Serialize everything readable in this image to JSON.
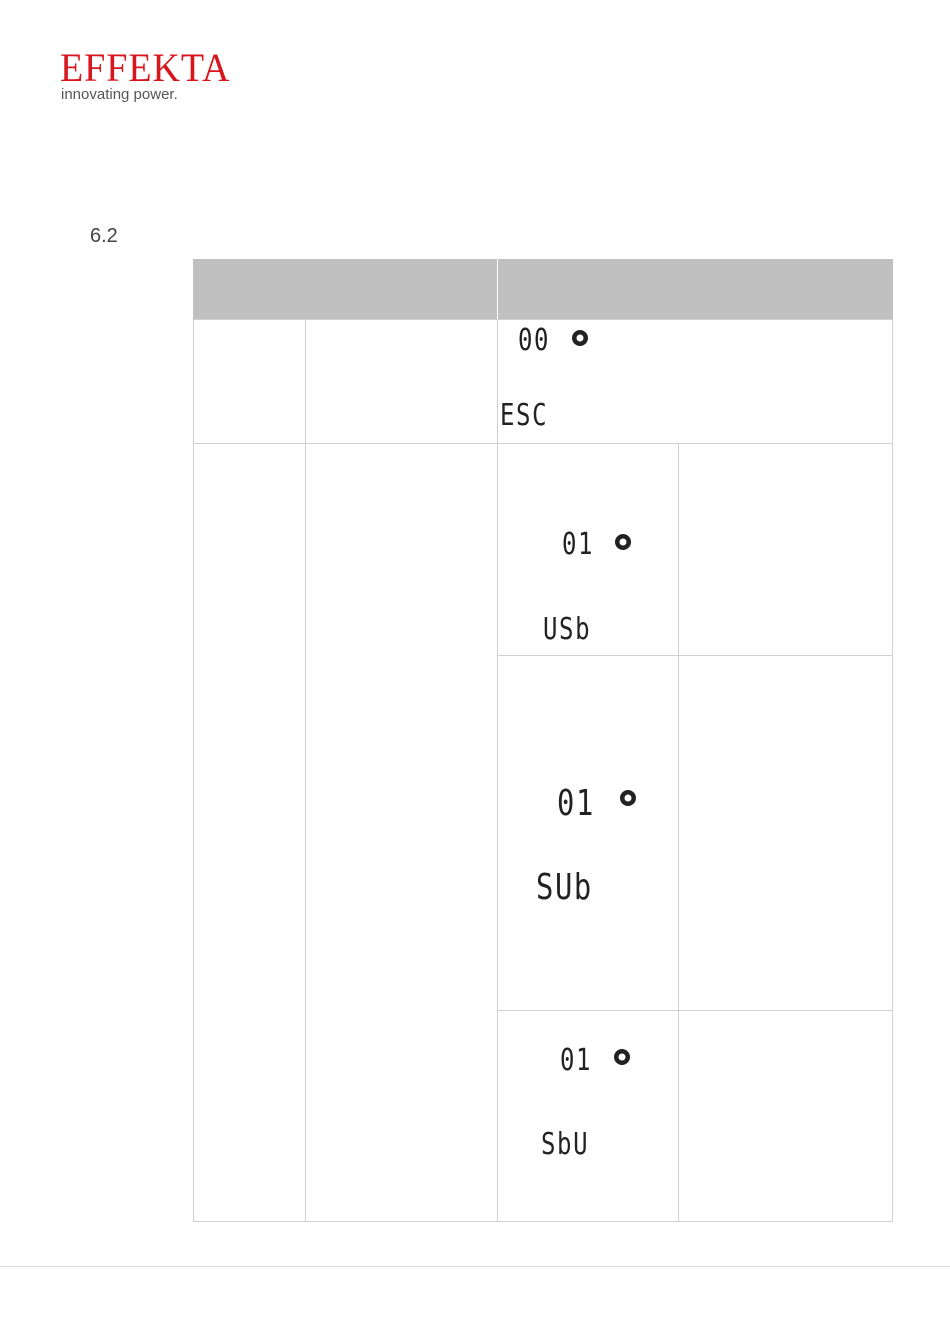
{
  "header": {
    "logo": "EFFEKTA",
    "tagline": "innovating power."
  },
  "section": "6.2",
  "table": {
    "rows": [
      {
        "code": "00",
        "text": "ESC"
      },
      {
        "code": "01",
        "text": "USb"
      },
      {
        "code": "01",
        "text": "SUb"
      },
      {
        "code": "01",
        "text": "SbU"
      }
    ]
  }
}
